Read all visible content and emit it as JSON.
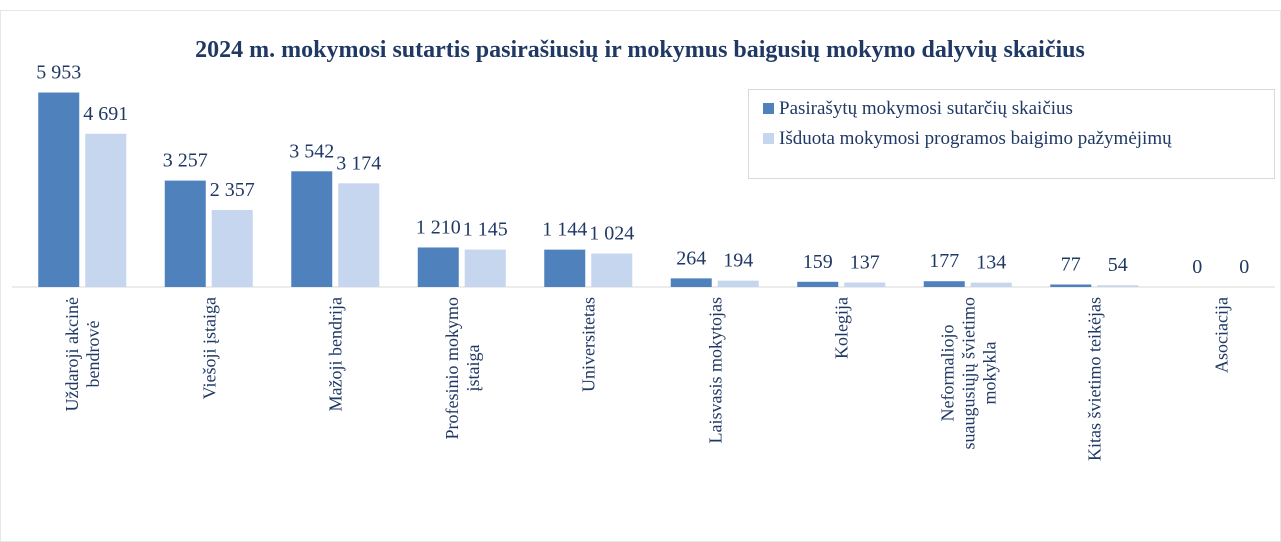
{
  "chart_data": {
    "type": "bar",
    "title": "2024 m. mokymosi sutartis pasirašiusių ir mokymus baigusių mokymo dalyvių skaičius",
    "categories": [
      "Uždaroji akcinė\nbendrovė",
      "Viešoji įstaiga",
      "Mažoji bendrija",
      "Profesinio mokymo\nįstaiga",
      "Universitetas",
      "Laisvasis mokytojas",
      "Kolegija",
      "Neformaliojo\nsuaugusiųjų švietimo\nmokykla",
      "Kitas švietimo teikėjas",
      "Asociacija"
    ],
    "series": [
      {
        "name": "Pasirašytų mokymosi sutarčių skaičius",
        "color": "#4f81bd",
        "values": [
          5953,
          3257,
          3542,
          1210,
          1144,
          264,
          159,
          177,
          77,
          0
        ],
        "value_labels": [
          "5 953",
          "3 257",
          "3 542",
          "1 210",
          "1 144",
          "264",
          "159",
          "177",
          "77",
          "0"
        ]
      },
      {
        "name": "Išduota mokymosi programos baigimo pažymėjimų",
        "color": "#c6d6ee",
        "values": [
          4691,
          2357,
          3174,
          1145,
          1024,
          194,
          137,
          134,
          54,
          0
        ],
        "value_labels": [
          "4 691",
          "2 357",
          "3 174",
          "1 145",
          "1 024",
          "194",
          "137",
          "134",
          "54",
          "0"
        ]
      }
    ],
    "ylim": [
      0,
      6000
    ],
    "legend": "top-right"
  }
}
